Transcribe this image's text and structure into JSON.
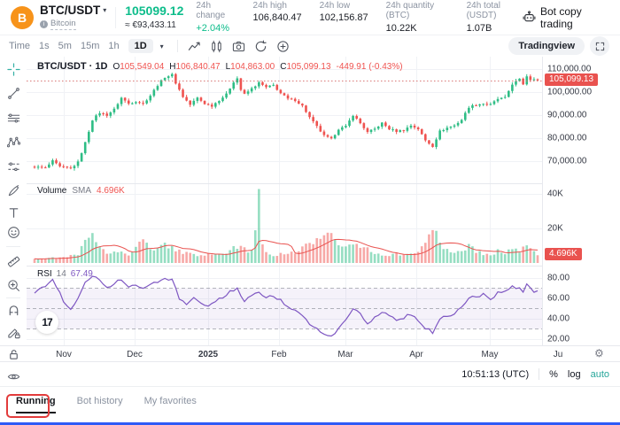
{
  "header": {
    "pair": "BTC/USDT",
    "coin_initial": "B",
    "coin_name": "Bitcoin",
    "last_price": "105099.12",
    "fiat_price": "≈ €93,433.11",
    "stats": [
      {
        "label": "24h change",
        "value": "+2.04%"
      },
      {
        "label": "24h high",
        "value": "106,840.47"
      },
      {
        "label": "24h low",
        "value": "102,156.87"
      },
      {
        "label": "24h quantity (BTC)",
        "value": "10.22K"
      },
      {
        "label": "24h total (USDT)",
        "value": "1.07B"
      }
    ],
    "bot_copy_trading": "Bot copy trading"
  },
  "toolbar": {
    "time_label": "Time",
    "intervals": [
      "1s",
      "5m",
      "15m",
      "1h",
      "1D"
    ],
    "active_interval": "1D",
    "tradingview_label": "Tradingview"
  },
  "sidebar_tools": [
    "crosshair",
    "trend-line",
    "parallel-lines",
    "xabcd-pattern",
    "forecast",
    "brush",
    "text",
    "emoji",
    "ruler",
    "zoom-in",
    "magnet",
    "draw-lock",
    "lock",
    "eye"
  ],
  "legend": {
    "title": "BTC/USDT · 1D",
    "o_label": "O",
    "o": "105,549.04",
    "h_label": "H",
    "h": "106,840.47",
    "l_label": "L",
    "l": "104,863.00",
    "c_label": "C",
    "c": "105,099.13",
    "change": "-449.91 (-0.43%)"
  },
  "volume_legend": {
    "title": "Volume",
    "sma_label": "SMA",
    "sma_value": "4.696K"
  },
  "rsi_legend": {
    "title": "RSI",
    "period": "14",
    "value": "67.49"
  },
  "axes": {
    "price_ticks": [
      "110,000.00",
      "100,000.00",
      "90,000.00",
      "80,000.00",
      "70,000.00"
    ],
    "price_badge": "105,099.13",
    "volume_ticks": [
      "40K",
      "20K"
    ],
    "volume_badge": "4.696K",
    "rsi_ticks": [
      "80.00",
      "60.00",
      "40.00",
      "20.00"
    ],
    "time_ticks": [
      "Nov",
      "Dec",
      "2025",
      "Feb",
      "Mar",
      "Apr",
      "May",
      "Ju"
    ]
  },
  "footer_bar": {
    "clock": "10:51:13 (UTC)",
    "percent": "%",
    "log": "log",
    "auto": "auto"
  },
  "tabs": [
    {
      "label": "Running",
      "active": true
    },
    {
      "label": "Bot history",
      "active": false
    },
    {
      "label": "My favorites",
      "active": false
    }
  ],
  "icons": {
    "chevron_down": "▾",
    "gear": "⚙",
    "watermark_text": "17"
  },
  "colors": {
    "up": "#2ebd85",
    "down": "#ef5350",
    "badge_red": "#e9524f",
    "rsi_purple": "#7e57c2",
    "accent_green": "#0dbd8b",
    "annotation_red": "#e23b3b",
    "bottom_bar_blue": "#2e5bf7",
    "brand_orange": "#f7931a",
    "teal": "#26a69a",
    "grid": "#f0f2f6",
    "divider": "#e6e8ed"
  },
  "chart_data": {
    "type": "candlestick",
    "pair": "BTC/USDT",
    "interval": "1D",
    "panes": [
      "price",
      "volume",
      "rsi"
    ],
    "n_candles": 140,
    "last_price": 105099.13,
    "price_axis_k": [
      110,
      100,
      90,
      80,
      70
    ],
    "price_ylim_k": [
      60,
      115
    ],
    "volume_axis_k": [
      40,
      20
    ],
    "rsi_axis": [
      80,
      60,
      40,
      20
    ],
    "rsi_bands": [
      70,
      50,
      30
    ],
    "rsi_last": 67.49,
    "volume_sma_last_k": 4.696,
    "x_months": [
      "Nov",
      "Dec",
      "2025",
      "Feb",
      "Mar",
      "Apr",
      "May",
      "Ju"
    ],
    "close_anchors_k": [
      [
        0,
        67.5
      ],
      [
        3,
        67.0
      ],
      [
        5,
        70.0
      ],
      [
        7,
        67.5
      ],
      [
        10,
        66.8
      ],
      [
        12,
        69.5
      ],
      [
        14,
        78.0
      ],
      [
        16,
        88.0
      ],
      [
        18,
        91.0
      ],
      [
        20,
        90.0
      ],
      [
        22,
        92.5
      ],
      [
        24,
        97.5
      ],
      [
        26,
        95.0
      ],
      [
        28,
        96.0
      ],
      [
        30,
        95.0
      ],
      [
        32,
        98.5
      ],
      [
        34,
        103.0
      ],
      [
        36,
        106.5
      ],
      [
        38,
        107.5
      ],
      [
        39,
        104.0
      ],
      [
        41,
        98.0
      ],
      [
        43,
        94.5
      ],
      [
        45,
        97.5
      ],
      [
        47,
        95.0
      ],
      [
        49,
        94.0
      ],
      [
        51,
        96.5
      ],
      [
        53,
        99.0
      ],
      [
        55,
        104.5
      ],
      [
        56,
        106.0
      ],
      [
        57,
        101.0
      ],
      [
        58,
        99.0
      ],
      [
        60,
        101.5
      ],
      [
        62,
        104.0
      ],
      [
        64,
        102.0
      ],
      [
        66,
        103.0
      ],
      [
        68,
        99.5
      ],
      [
        70,
        97.0
      ],
      [
        72,
        96.5
      ],
      [
        74,
        94.0
      ],
      [
        76,
        89.0
      ],
      [
        78,
        85.0
      ],
      [
        80,
        81.0
      ],
      [
        82,
        79.5
      ],
      [
        84,
        84.0
      ],
      [
        86,
        85.0
      ],
      [
        88,
        90.0
      ],
      [
        90,
        86.5
      ],
      [
        92,
        82.5
      ],
      [
        94,
        84.0
      ],
      [
        96,
        86.5
      ],
      [
        98,
        84.0
      ],
      [
        100,
        83.0
      ],
      [
        102,
        83.5
      ],
      [
        104,
        85.5
      ],
      [
        106,
        84.0
      ],
      [
        108,
        79.0
      ],
      [
        110,
        76.5
      ],
      [
        112,
        83.0
      ],
      [
        114,
        84.5
      ],
      [
        116,
        85.5
      ],
      [
        118,
        88.0
      ],
      [
        120,
        93.5
      ],
      [
        122,
        94.5
      ],
      [
        124,
        95.0
      ],
      [
        126,
        94.5
      ],
      [
        128,
        97.0
      ],
      [
        130,
        97.5
      ],
      [
        132,
        103.5
      ],
      [
        134,
        105.5
      ],
      [
        135,
        103.5
      ],
      [
        136,
        107.0
      ],
      [
        137,
        105.5
      ],
      [
        138,
        105.55
      ],
      [
        139,
        105.1
      ]
    ],
    "volume_anchors_k": [
      [
        0,
        2.5
      ],
      [
        8,
        3
      ],
      [
        12,
        5
      ],
      [
        14,
        12
      ],
      [
        16,
        15
      ],
      [
        18,
        10
      ],
      [
        20,
        6
      ],
      [
        24,
        8
      ],
      [
        26,
        4
      ],
      [
        30,
        14
      ],
      [
        32,
        7
      ],
      [
        36,
        11
      ],
      [
        38,
        9
      ],
      [
        41,
        6
      ],
      [
        45,
        4
      ],
      [
        49,
        5
      ],
      [
        53,
        6
      ],
      [
        55,
        9
      ],
      [
        58,
        8
      ],
      [
        60,
        7
      ],
      [
        62,
        38
      ],
      [
        63,
        9
      ],
      [
        66,
        4
      ],
      [
        68,
        6
      ],
      [
        70,
        5
      ],
      [
        74,
        8
      ],
      [
        76,
        14
      ],
      [
        78,
        12
      ],
      [
        80,
        17
      ],
      [
        82,
        15
      ],
      [
        84,
        9
      ],
      [
        86,
        8
      ],
      [
        88,
        13
      ],
      [
        90,
        10
      ],
      [
        92,
        9
      ],
      [
        94,
        6
      ],
      [
        96,
        5
      ],
      [
        100,
        5
      ],
      [
        104,
        5
      ],
      [
        106,
        6
      ],
      [
        108,
        14
      ],
      [
        110,
        21
      ],
      [
        112,
        13
      ],
      [
        114,
        7
      ],
      [
        116,
        5
      ],
      [
        118,
        7
      ],
      [
        120,
        11
      ],
      [
        122,
        7
      ],
      [
        124,
        5
      ],
      [
        126,
        5
      ],
      [
        128,
        7
      ],
      [
        130,
        5
      ],
      [
        132,
        9
      ],
      [
        134,
        7
      ],
      [
        136,
        9
      ],
      [
        138,
        6
      ],
      [
        139,
        4
      ]
    ],
    "rsi_anchors": [
      [
        0,
        66
      ],
      [
        3,
        73
      ],
      [
        5,
        80
      ],
      [
        8,
        57
      ],
      [
        10,
        50
      ],
      [
        12,
        60
      ],
      [
        14,
        75
      ],
      [
        16,
        83
      ],
      [
        18,
        79
      ],
      [
        20,
        71
      ],
      [
        22,
        74
      ],
      [
        24,
        79
      ],
      [
        26,
        71
      ],
      [
        28,
        73
      ],
      [
        30,
        69
      ],
      [
        32,
        73
      ],
      [
        34,
        77
      ],
      [
        36,
        80
      ],
      [
        38,
        78
      ],
      [
        40,
        60
      ],
      [
        42,
        53
      ],
      [
        44,
        60
      ],
      [
        46,
        54
      ],
      [
        48,
        51
      ],
      [
        50,
        57
      ],
      [
        52,
        61
      ],
      [
        54,
        67
      ],
      [
        56,
        69
      ],
      [
        58,
        57
      ],
      [
        60,
        62
      ],
      [
        62,
        66
      ],
      [
        64,
        61
      ],
      [
        66,
        62
      ],
      [
        68,
        58
      ],
      [
        70,
        52
      ],
      [
        72,
        48
      ],
      [
        74,
        42
      ],
      [
        76,
        35
      ],
      [
        78,
        30
      ],
      [
        80,
        24
      ],
      [
        82,
        22
      ],
      [
        84,
        30
      ],
      [
        86,
        40
      ],
      [
        88,
        50
      ],
      [
        90,
        44
      ],
      [
        92,
        36
      ],
      [
        94,
        41
      ],
      [
        96,
        47
      ],
      [
        98,
        42
      ],
      [
        100,
        39
      ],
      [
        102,
        41
      ],
      [
        104,
        45
      ],
      [
        106,
        39
      ],
      [
        108,
        31
      ],
      [
        110,
        27
      ],
      [
        112,
        39
      ],
      [
        114,
        43
      ],
      [
        116,
        45
      ],
      [
        118,
        51
      ],
      [
        120,
        60
      ],
      [
        122,
        62
      ],
      [
        124,
        64
      ],
      [
        126,
        60
      ],
      [
        128,
        65
      ],
      [
        130,
        66
      ],
      [
        132,
        71
      ],
      [
        134,
        69
      ],
      [
        135,
        65
      ],
      [
        136,
        74
      ],
      [
        137,
        70
      ],
      [
        138,
        66
      ],
      [
        139,
        67.49
      ]
    ],
    "noise_k": 0.8,
    "wick_k": 0.9
  }
}
